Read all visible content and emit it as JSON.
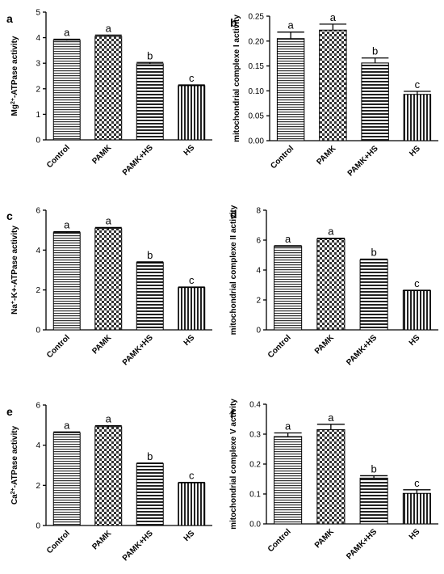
{
  "chart_data": [
    {
      "type": "bar",
      "panel_label": "a",
      "ylabel_html": "Mg<sup>2+</sup>-ATPase activity",
      "ylabel_parts": [
        {
          "t": "Mg"
        },
        {
          "t": "2+",
          "sup": true
        },
        {
          "t": "-ATPase activity"
        }
      ],
      "categories": [
        "Control",
        "PAMK",
        "PAMK+HS",
        "HS"
      ],
      "values": [
        3.9,
        4.05,
        2.98,
        2.12
      ],
      "errors": [
        0.04,
        0.05,
        0.05,
        0.03
      ],
      "letters": [
        "a",
        "a",
        "b",
        "c"
      ],
      "ylim": [
        0,
        5
      ],
      "yticks": [
        "0",
        "1",
        "2",
        "3",
        "4",
        "5"
      ],
      "ytick_values": [
        0,
        1,
        2,
        3,
        4,
        5
      ]
    },
    {
      "type": "bar",
      "panel_label": "b",
      "ylabel_parts": [
        {
          "t": "mitochondrial complexe I activity"
        }
      ],
      "categories": [
        "Control",
        "PAMK",
        "PAMK+HS",
        "HS"
      ],
      "values": [
        0.205,
        0.222,
        0.156,
        0.093
      ],
      "errors": [
        0.013,
        0.012,
        0.01,
        0.006
      ],
      "letters": [
        "a",
        "a",
        "b",
        "c"
      ],
      "ylim": [
        0,
        0.25
      ],
      "yticks": [
        "0.00",
        "0.05",
        "0.10",
        "0.15",
        "0.20",
        "0.25"
      ],
      "ytick_values": [
        0,
        0.05,
        0.1,
        0.15,
        0.2,
        0.25
      ]
    },
    {
      "type": "bar",
      "panel_label": "c",
      "ylabel_parts": [
        {
          "t": "Na"
        },
        {
          "t": "+",
          "sup": true
        },
        {
          "t": "-K+-ATPase activity"
        }
      ],
      "categories": [
        "Control",
        "PAMK",
        "PAMK+HS",
        "HS"
      ],
      "values": [
        4.88,
        5.08,
        3.38,
        2.12
      ],
      "errors": [
        0.04,
        0.05,
        0.03,
        0.03
      ],
      "letters": [
        "a",
        "a",
        "b",
        "c"
      ],
      "ylim": [
        0,
        6
      ],
      "yticks": [
        "0",
        "2",
        "4",
        "6"
      ],
      "ytick_values": [
        0,
        2,
        4,
        6
      ]
    },
    {
      "type": "bar",
      "panel_label": "d",
      "ylabel_parts": [
        {
          "t": "mitochondrial complexe II activity"
        }
      ],
      "categories": [
        "Control",
        "PAMK",
        "PAMK+HS",
        "HS"
      ],
      "values": [
        5.58,
        6.08,
        4.68,
        2.62
      ],
      "errors": [
        0.05,
        0.05,
        0.05,
        0.03
      ],
      "letters": [
        "a",
        "a",
        "b",
        "c"
      ],
      "ylim": [
        0,
        8
      ],
      "yticks": [
        "0",
        "2",
        "4",
        "6",
        "8"
      ],
      "ytick_values": [
        0,
        2,
        4,
        6,
        8
      ]
    },
    {
      "type": "bar",
      "panel_label": "e",
      "ylabel_parts": [
        {
          "t": "Ca"
        },
        {
          "t": "2+",
          "sup": true
        },
        {
          "t": "-ATPase activity"
        }
      ],
      "categories": [
        "Control",
        "PAMK",
        "PAMK+HS",
        "HS"
      ],
      "values": [
        4.62,
        4.92,
        3.08,
        2.12
      ],
      "errors": [
        0.04,
        0.05,
        0.03,
        0.03
      ],
      "letters": [
        "a",
        "a",
        "b",
        "c"
      ],
      "ylim": [
        0,
        6
      ],
      "yticks": [
        "0",
        "2",
        "4",
        "6"
      ],
      "ytick_values": [
        0,
        2,
        4,
        6
      ]
    },
    {
      "type": "bar",
      "panel_label": "f",
      "ylabel_parts": [
        {
          "t": "mitochondrial complexe V activity"
        }
      ],
      "categories": [
        "Control",
        "PAMK",
        "PAMK+HS",
        "HS"
      ],
      "values": [
        0.292,
        0.315,
        0.153,
        0.102
      ],
      "errors": [
        0.012,
        0.018,
        0.008,
        0.012
      ],
      "letters": [
        "a",
        "a",
        "b",
        "c"
      ],
      "ylim": [
        0,
        0.4
      ],
      "yticks": [
        "0.0",
        "0.1",
        "0.2",
        "0.3",
        "0.4"
      ],
      "ytick_values": [
        0,
        0.1,
        0.2,
        0.3,
        0.4
      ]
    }
  ]
}
